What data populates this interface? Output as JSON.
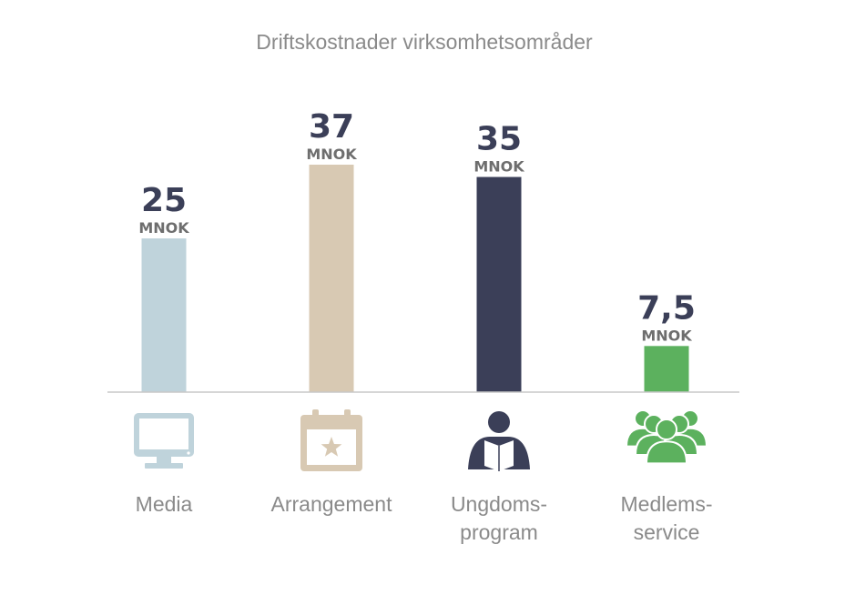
{
  "chart_data": {
    "type": "bar",
    "title": "Driftskostnader virksomhetsområder",
    "categories": [
      "Media",
      "Arrangement",
      "Ungdoms-program",
      "Medlems-service"
    ],
    "category_lines": [
      [
        "Media"
      ],
      [
        "Arrangement"
      ],
      [
        "Ungdoms-",
        "program"
      ],
      [
        "Medlems-",
        "service"
      ]
    ],
    "values": [
      25,
      37,
      35,
      7.5
    ],
    "value_labels": [
      "25",
      "37",
      "35",
      "7,5"
    ],
    "unit": "MNOK",
    "colors": [
      "#bfd3db",
      "#d8c9b3",
      "#3b3f58",
      "#5cb15e"
    ],
    "icons": [
      "monitor-icon",
      "calendar-star-icon",
      "reader-icon",
      "group-icon"
    ],
    "ylim": [
      0,
      37
    ],
    "xlabel": "",
    "ylabel": "",
    "grid": false,
    "legend": "none"
  },
  "colors": {
    "title": "#8a8a8a",
    "value_text": "#3b3f58",
    "unit_text": "#6e6e6e",
    "category_text": "#8a8a8a",
    "baseline": "#c8c8c8"
  }
}
